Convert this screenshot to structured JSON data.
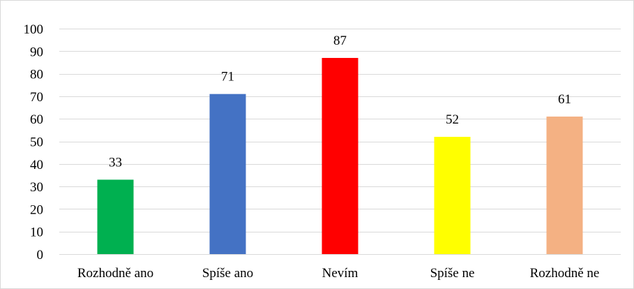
{
  "chart_data": {
    "type": "bar",
    "title": "",
    "xlabel": "",
    "ylabel": "",
    "categories": [
      "Rozhodně ano",
      "Spíše ano",
      "Nevím",
      "Spíše ne",
      "Rozhodně ne"
    ],
    "values": [
      33,
      71,
      87,
      52,
      61
    ],
    "bar_colors": [
      "#00b050",
      "#4472c4",
      "#ff0000",
      "#ffff00",
      "#f4b183"
    ],
    "ylim": [
      0,
      100
    ],
    "yticks": [
      0,
      10,
      20,
      30,
      40,
      50,
      60,
      70,
      80,
      90,
      100
    ],
    "ytick_labels": [
      "0",
      "10",
      "20",
      "30",
      "40",
      "50",
      "60",
      "70",
      "80",
      "90",
      "100"
    ],
    "grid": true,
    "legend": "none",
    "data_labels": true,
    "colors": {
      "gridline": "#d9d9d9",
      "frame": "#d9d9d9",
      "text": "#000000"
    }
  }
}
